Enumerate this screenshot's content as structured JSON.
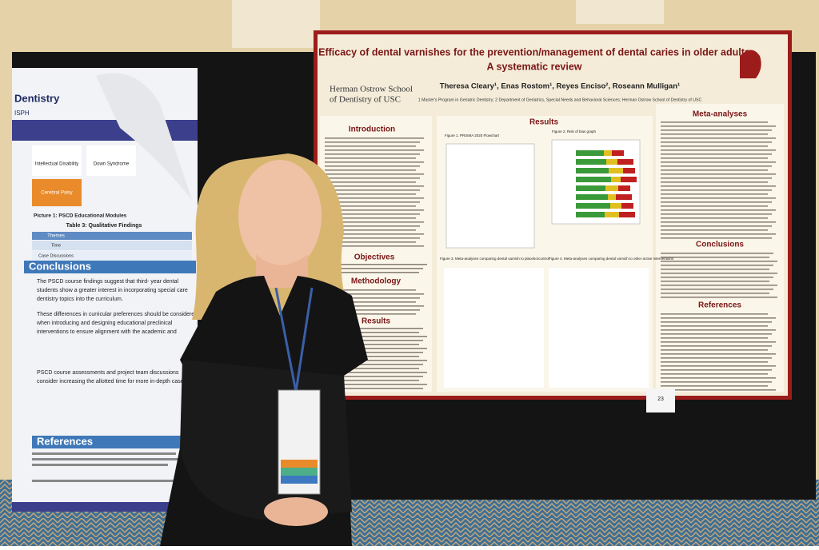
{
  "left_poster": {
    "header": "Dentistry",
    "header_sub": "ISPH",
    "tiles": [
      "Intellectual Disability",
      "Down Syndrome",
      "Cerebral Palsy"
    ],
    "picture_caption": "Picture 1: PSCD Educational Modules",
    "table_title": "Table 3: Qualitative Findings",
    "table_header": "Themes",
    "table_rows": [
      "Time",
      "Case Discussions"
    ],
    "conclusions_heading": "Conclusions",
    "conclusions": [
      "The PSCD course findings suggest that third- year dental",
      "students show a greater interest in incorporating special care",
      "dentistry topics into the curriculum.",
      "These differences in curricular preferences should be considered",
      "when introducing and designing educational preclinical",
      "interventions to ensure alignment with the academic and",
      "PSCD course assessments and project team discussions",
      "consider increasing the allotted time for more in-depth case"
    ],
    "references_heading": "References"
  },
  "right_poster": {
    "title": "Efficacy of dental varnishes for the prevention/management of dental caries in older adults",
    "subtitle": "A systematic review",
    "school": [
      "Herman Ostrow School",
      "of Dentistry of USC"
    ],
    "authors": "Theresa Cleary¹, Enas Rostom¹, Reyes Enciso², Roseann Mulligan¹",
    "affiliations": "1 Master's Program in Geriatric Dentistry; 2 Department of Geriatrics, Special Needs and Behavioral Sciences; Herman Ostrow School of Dentistry of USC",
    "sections": {
      "introduction": "Introduction",
      "objectives": "Objectives",
      "methodology": "Methodology",
      "results_left": "Results",
      "results": "Results",
      "meta": "Meta-analyses",
      "conclusions": "Conclusions",
      "references": "References"
    },
    "figures": [
      "Figure 1. PRISMA 2020 Flowchart",
      "Figure 2. Risk of bias graph",
      "Figure 3. Meta-analyses comparing dental varnish to placebo/control",
      "Figure 4. Meta-analyses comparing dental varnish to other active interventions"
    ]
  },
  "poster_number": "23"
}
